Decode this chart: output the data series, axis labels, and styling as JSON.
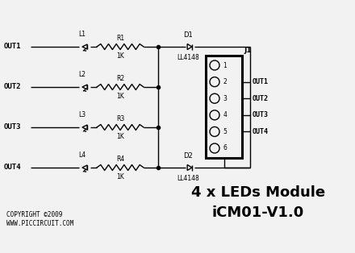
{
  "bg_color": "#f2f2f2",
  "line_color": "#000000",
  "title_line1": "4 x LEDs Module",
  "title_line2": "iCM01-V1.0",
  "copyright": "COPYRIGHT ©2009\nWWW.PICCIRCUIT.COM",
  "out_labels": [
    "OUT1",
    "OUT2",
    "OUT3",
    "OUT4"
  ],
  "inductor_labels": [
    "L1",
    "L2",
    "L3",
    "L4"
  ],
  "resistor_labels": [
    "R1",
    "R2",
    "R3",
    "R4"
  ],
  "resistor_values": [
    "1K",
    "1K",
    "1K",
    "1K"
  ],
  "diode_top_label": "D1",
  "diode_bot_label": "D2",
  "diode_part": "LL4148",
  "connector_label": "J1",
  "connector_pins": [
    "1",
    "2",
    "3",
    "4",
    "5",
    "6"
  ],
  "connector_out_labels": [
    "OUT1",
    "OUT2",
    "OUT3",
    "OUT4"
  ],
  "fig_width": 4.4,
  "fig_height": 3.14,
  "dpi": 100
}
